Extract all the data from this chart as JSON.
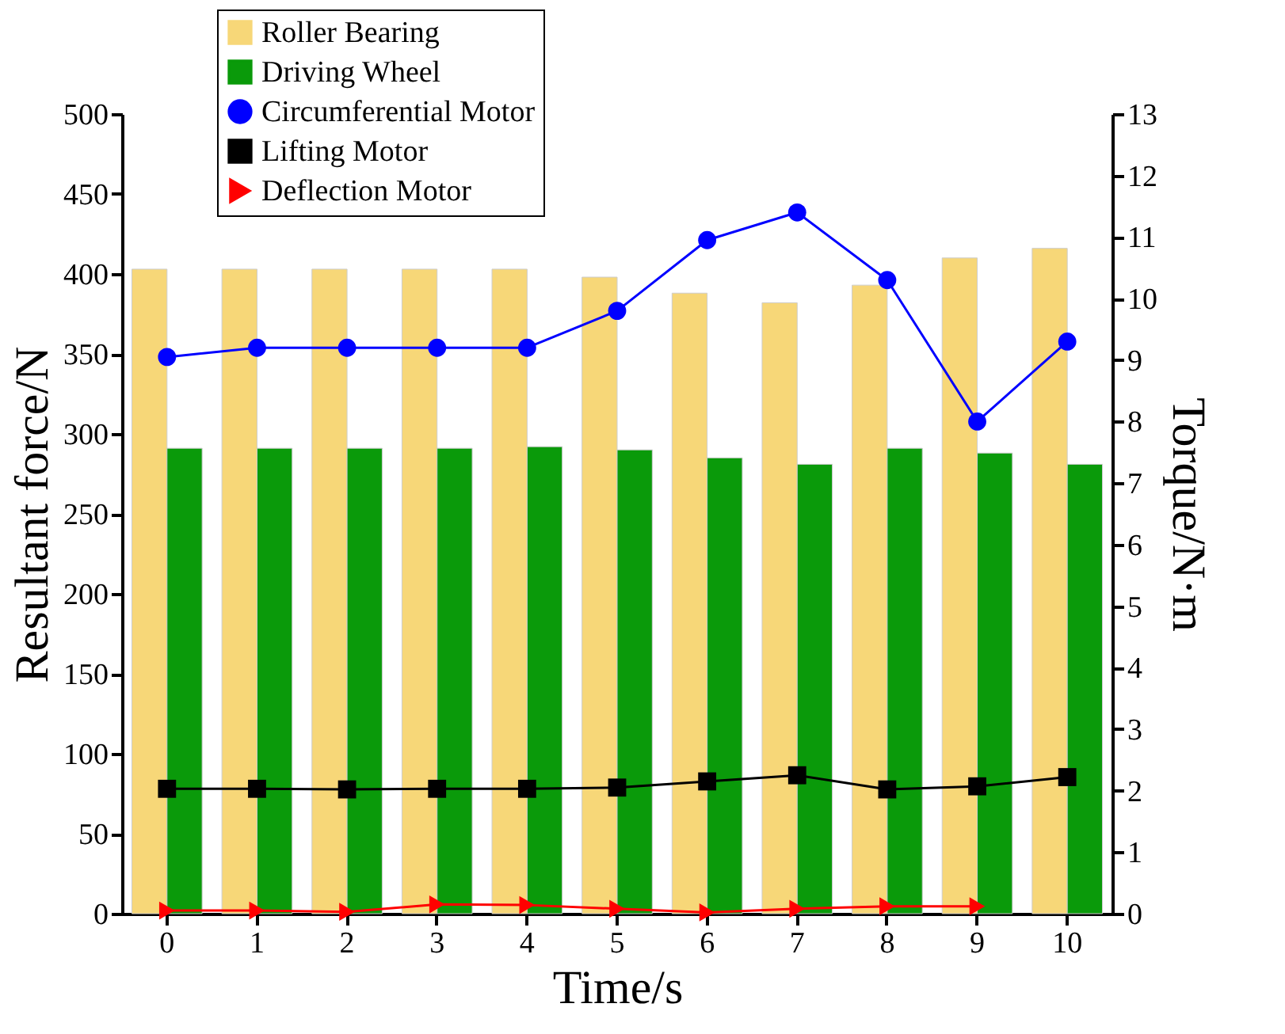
{
  "chart_data": {
    "type": "bar",
    "xlabel": "Time/s",
    "ylabel": "Resultant force/N",
    "y2label": "Torque/N·m",
    "categories": [
      "0",
      "1",
      "2",
      "3",
      "4",
      "5",
      "6",
      "7",
      "8",
      "9",
      "10"
    ],
    "ylim": [
      0,
      500
    ],
    "yticks": [
      0,
      50,
      100,
      150,
      200,
      250,
      300,
      350,
      400,
      450,
      500
    ],
    "y2lim": [
      0,
      13
    ],
    "y2ticks": [
      0,
      1,
      2,
      3,
      4,
      5,
      6,
      7,
      8,
      9,
      10,
      11,
      12,
      13
    ],
    "grid": false,
    "legend": "top left",
    "series": [
      {
        "name": "Roller Bearing",
        "type": "bar",
        "color": "#f7d778",
        "values": [
          403,
          403,
          403,
          403,
          403,
          398,
          388,
          382,
          393,
          410,
          416
        ]
      },
      {
        "name": "Driving Wheel",
        "type": "bar",
        "color": "#0a9a0a",
        "values": [
          291,
          291,
          291,
          291,
          292,
          290,
          285,
          281,
          291,
          288,
          281
        ]
      },
      {
        "name": "Circumferential Motor",
        "type": "line",
        "axis": "y2",
        "marker": "circle",
        "color": "#0000ff",
        "values": [
          9.05,
          9.2,
          9.2,
          9.2,
          9.2,
          9.8,
          10.95,
          11.4,
          10.3,
          8.0,
          9.3
        ]
      },
      {
        "name": "Lifting Motor",
        "type": "line",
        "axis": "y2",
        "marker": "square",
        "color": "#000000",
        "values": [
          2.03,
          2.03,
          2.02,
          2.03,
          2.03,
          2.05,
          2.15,
          2.25,
          2.02,
          2.07,
          2.22
        ]
      },
      {
        "name": "Deflection Motor",
        "type": "line",
        "axis": "y2",
        "marker": "triangle",
        "color": "#ff0000",
        "values": [
          0.05,
          0.05,
          0.03,
          0.15,
          0.14,
          0.08,
          0.02,
          0.08,
          0.12,
          0.12,
          null
        ]
      }
    ]
  }
}
